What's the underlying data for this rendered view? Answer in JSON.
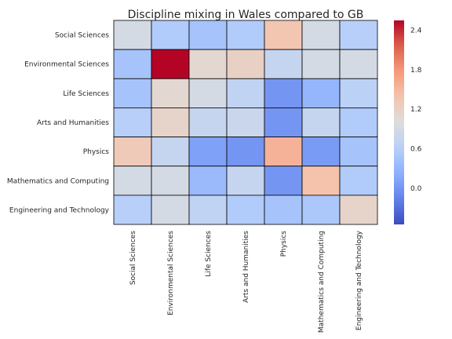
{
  "chart_data": {
    "type": "heatmap",
    "title": "Discipline mixing in Wales compared to GB",
    "rows": [
      "Social Sciences",
      "Environmental Sciences",
      "Life Sciences",
      "Arts and Humanities",
      "Physics",
      "Mathematics and Computing",
      "Engineering and Technology"
    ],
    "columns": [
      "Social Sciences",
      "Environmental Sciences",
      "Life Sciences",
      "Arts and Humanities",
      "Physics",
      "Mathematics and Computing",
      "Engineering and Technology"
    ],
    "values": [
      [
        0.9,
        0.55,
        0.45,
        0.55,
        1.35,
        0.9,
        0.6
      ],
      [
        0.45,
        2.55,
        1.1,
        1.2,
        0.75,
        0.9,
        0.9
      ],
      [
        0.45,
        1.1,
        0.9,
        0.7,
        0.0,
        0.3,
        0.65
      ],
      [
        0.6,
        1.15,
        0.75,
        0.8,
        0.0,
        0.75,
        0.55
      ],
      [
        1.3,
        0.75,
        0.1,
        0.0,
        1.55,
        0.05,
        0.45
      ],
      [
        0.9,
        0.9,
        0.35,
        0.75,
        0.0,
        1.4,
        0.55
      ],
      [
        0.6,
        0.9,
        0.7,
        0.55,
        0.45,
        0.5,
        1.15
      ]
    ],
    "colorbar": {
      "colormap": "coolwarm",
      "vmin": -0.55,
      "vmax": 2.55,
      "ticks": [
        "0.0",
        "0.6",
        "1.2",
        "1.8",
        "2.4"
      ]
    },
    "cell_border_color": "#000000"
  }
}
